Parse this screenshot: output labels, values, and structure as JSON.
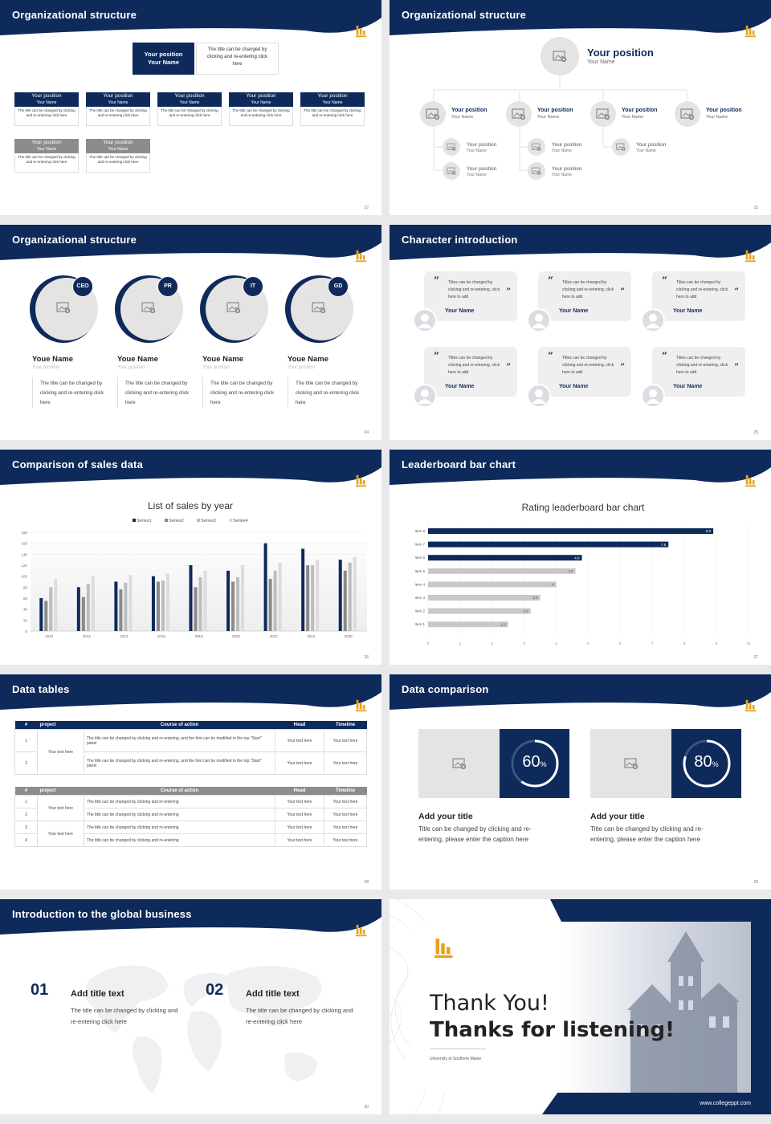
{
  "colors": {
    "navy": "#0e2a5a",
    "gold": "#e8a21a",
    "gray": "#8c8c8c"
  },
  "s22": {
    "title": "Organizational structure",
    "num": "22",
    "top": {
      "pos": "Your position",
      "name": "Your Name",
      "desc": "The title can be changed by clicking and re-entering click here"
    },
    "row1": [
      {
        "pos": "Your position",
        "name": "Your Name",
        "desc": "The title can be changed by clicking and re-entering click here"
      },
      {
        "pos": "Your position",
        "name": "Your Name",
        "desc": "The title can be changed by clicking and re-entering click here"
      },
      {
        "pos": "Your position",
        "name": "Your Name",
        "desc": "The title can be changed by clicking and re-entering click here"
      },
      {
        "pos": "Your position",
        "name": "Your Name",
        "desc": "The title can be changed by clicking and re-entering click here"
      },
      {
        "pos": "Your position",
        "name": "Your Name",
        "desc": "The title can be changed by clicking and re-entering click here"
      }
    ],
    "row2": [
      {
        "pos": "Your position",
        "name": "Your Name",
        "desc": "The title can be changed by clicking and re-entering click here"
      },
      {
        "pos": "Your position",
        "name": "Your Name",
        "desc": "The title can be changed by clicking and re-entering click here"
      }
    ]
  },
  "s23": {
    "title": "Organizational structure",
    "num": "23",
    "top": {
      "pos": "Your position",
      "name": "Your Name"
    },
    "level": [
      {
        "pos": "Your position",
        "name": "Your Name"
      },
      {
        "pos": "Your position",
        "name": "Your Name"
      },
      {
        "pos": "Your position",
        "name": "Your Name"
      },
      {
        "pos": "Your position",
        "name": "Your Name"
      }
    ],
    "sub": [
      {
        "pos": "Your position",
        "name": "Your Name"
      },
      {
        "pos": "Your position",
        "name": "Your Name"
      },
      {
        "pos": "Your position",
        "name": "Your Name"
      },
      {
        "pos": "Your position",
        "name": "Your Name"
      },
      {
        "pos": "Your position",
        "name": "Your Name"
      }
    ]
  },
  "s24": {
    "title": "Organizational structure",
    "num": "24",
    "people": [
      {
        "badge": "CEO",
        "name": "Youe Name",
        "pos": "Your position",
        "desc": "The title can be changed by clicking and re-entering click here"
      },
      {
        "badge": "PR",
        "name": "Youe Name",
        "pos": "Your position",
        "desc": "The title can be changed by clicking and re-entering click here"
      },
      {
        "badge": "IT",
        "name": "Youe Name",
        "pos": "Your position",
        "desc": "The title can be changed by clicking and re-entering click here"
      },
      {
        "badge": "GD",
        "name": "Youe Name",
        "pos": "Your position",
        "desc": "The title can be changed by clicking and re-entering click here"
      }
    ]
  },
  "s25": {
    "title": "Character introduction",
    "num": "25",
    "cards": [
      {
        "text": "Titles can be changed by clicking and re-entering, click here to add",
        "name": "Your Name"
      },
      {
        "text": "Titles can be changed by clicking and re-entering, click here to add",
        "name": "Your Name"
      },
      {
        "text": "Titles can be changed by clicking and re-entering, click here to add",
        "name": "Your Name"
      },
      {
        "text": "Titles can be changed by clicking and re-entering, click here to add",
        "name": "Your Name"
      },
      {
        "text": "Titles can be changed by clicking and re-entering, click here to add",
        "name": "Your Name"
      },
      {
        "text": "Titles can be changed by clicking and re-entering, click here to add",
        "name": "Your Name"
      }
    ]
  },
  "s26": {
    "header": "Comparison of sales data",
    "num": "26"
  },
  "s27": {
    "header": "Leaderboard bar chart",
    "num": "27"
  },
  "s28": {
    "title": "Data tables",
    "num": "28",
    "t1": {
      "headers": [
        "#",
        "project",
        "Course of action",
        "Head",
        "Timeline"
      ],
      "project": "Your text here",
      "rows": [
        {
          "n": "1",
          "action": "The title can be changed by clicking and re-entering, and the font can be modified in the top \"Start\" panel",
          "head": "Your text here",
          "time": "Your text here"
        },
        {
          "n": "2",
          "action": "The title can be changed by clicking and re-entering, and the font can be modified in the top \"Start\" panel",
          "head": "Your text here",
          "time": "Your text here"
        }
      ]
    },
    "t2": {
      "headers": [
        "#",
        "project",
        "Course of action",
        "Head",
        "Timeline"
      ],
      "projects": [
        "Your text here",
        "Your text here"
      ],
      "rows": [
        {
          "n": "1",
          "action": "The title can be changed by clicking and re-entering",
          "head": "Your text here",
          "time": "Your text here"
        },
        {
          "n": "2",
          "action": "The title can be changed by clicking and re-entering",
          "head": "Your text here",
          "time": "Your text here"
        },
        {
          "n": "3",
          "action": "The title can be changed by clicking and re-entering",
          "head": "Your text here",
          "time": "Your text here"
        },
        {
          "n": "4",
          "action": "The title can be changed by clicking and re-entering",
          "head": "Your text here",
          "time": "Your text here"
        }
      ]
    }
  },
  "s29": {
    "title": "Data comparison",
    "num": "29",
    "items": [
      {
        "percent": "60",
        "unit": "%",
        "value": 0.6,
        "title": "Add your title",
        "desc": "Title can be changed by clicking and re-entering, please enter the caption here"
      },
      {
        "percent": "80",
        "unit": "%",
        "value": 0.8,
        "title": "Add your title",
        "desc": "Title can be changed by clicking and re-entering, please enter the caption here"
      }
    ]
  },
  "s30": {
    "title": "Introduction to the global business",
    "num": "30",
    "items": [
      {
        "num": "01",
        "title": "Add title text",
        "desc": "The title can be changed by clicking and re-entering click here"
      },
      {
        "num": "02",
        "title": "Add title text",
        "desc": "The title can be changed by clicking and re-entering click here"
      }
    ]
  },
  "s31": {
    "line1": "Thank You!",
    "line2": "Thanks for listening!",
    "university": "University of Southern Maine",
    "site": "www.collegeppt.com"
  },
  "chart_data": [
    {
      "type": "bar",
      "title": "List of sales by year",
      "categories": [
        "2010",
        "2012",
        "2014",
        "2016",
        "2018",
        "2020",
        "2022",
        "2024",
        "2026"
      ],
      "series": [
        {
          "name": "Series1",
          "color": "#0e2a5a",
          "values": [
            60,
            80,
            90,
            100,
            120,
            110,
            160,
            150,
            130
          ]
        },
        {
          "name": "Series2",
          "color": "#8a8a8a",
          "values": [
            55,
            62,
            76,
            90,
            80,
            90,
            95,
            120,
            110
          ]
        },
        {
          "name": "Series3",
          "color": "#bdbdbd",
          "values": [
            80,
            86,
            88,
            92,
            98,
            98,
            110,
            120,
            125
          ]
        },
        {
          "name": "Series4",
          "color": "#dcdcdc",
          "values": [
            95,
            100,
            102,
            105,
            110,
            120,
            125,
            130,
            135
          ]
        }
      ],
      "ylim": [
        0,
        180
      ],
      "yticks": [
        0,
        20,
        40,
        60,
        80,
        100,
        120,
        140,
        160,
        180
      ],
      "legend": "top"
    },
    {
      "type": "bar",
      "orientation": "horizontal",
      "title": "Rating leaderboard bar chart",
      "categories": [
        "Item 8",
        "Item 7",
        "Item 6",
        "Item 5",
        "Item 4",
        "Item 3",
        "Item 2",
        "Item 1"
      ],
      "values": [
        8.9,
        7.5,
        4.8,
        4.6,
        4,
        3.5,
        3.2,
        2.5
      ],
      "value_labels": [
        "8.9",
        "7.5",
        "4.8",
        "4.6",
        "4",
        "3.5",
        "3.2",
        "2.5"
      ],
      "highlight": [
        "Item 8",
        "Item 7",
        "Item 6"
      ],
      "xlim": [
        0,
        10
      ],
      "xticks": [
        0,
        1,
        2,
        3,
        4,
        5,
        6,
        7,
        8,
        9,
        10
      ]
    }
  ]
}
